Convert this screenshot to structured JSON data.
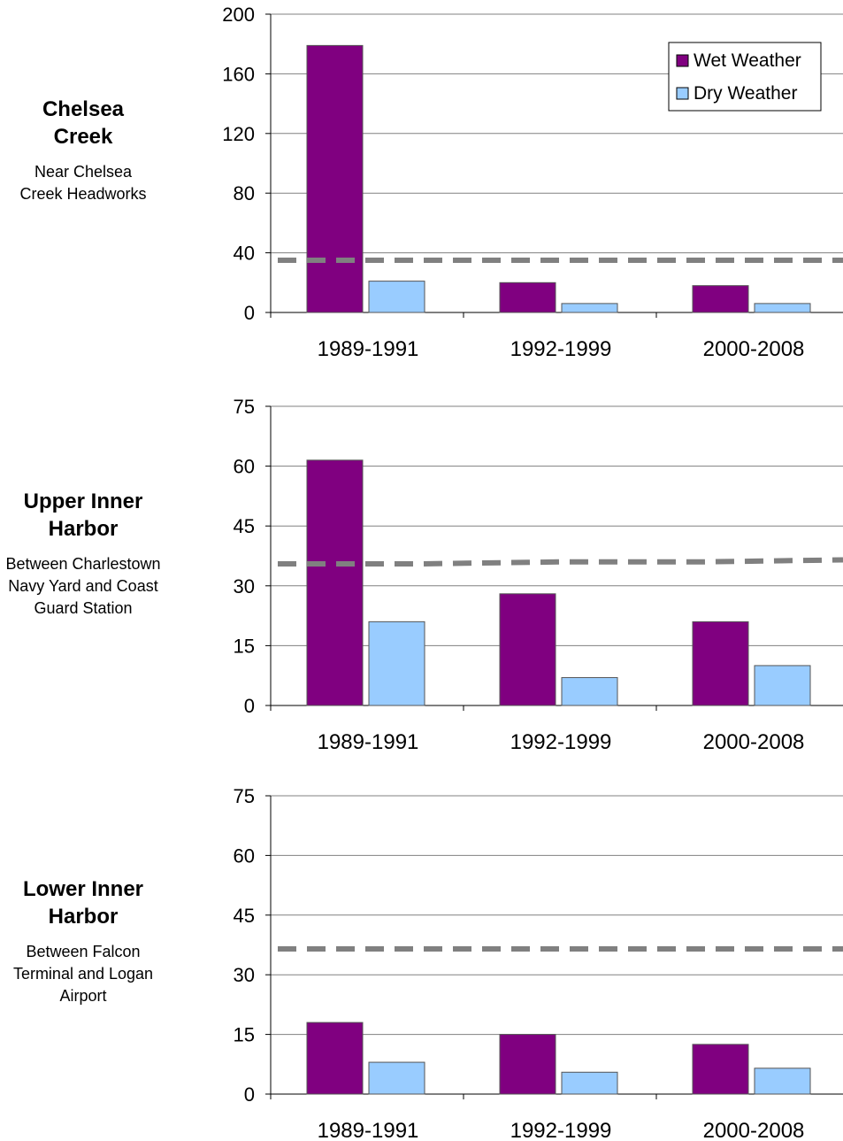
{
  "legend": [
    "Wet Weather",
    "Dry Weather"
  ],
  "colors": {
    "wet": "#800080",
    "dry": "#99ccff",
    "threshold": "#808080",
    "grid": "#808080"
  },
  "chart_data": [
    {
      "type": "bar",
      "site_title": "Chelsea\nCreek",
      "site_subtitle": "Near Chelsea\nCreek Headworks",
      "categories": [
        "1989-1991",
        "1992-1999",
        "2000-2008"
      ],
      "series": [
        {
          "name": "Wet Weather",
          "values": [
            179,
            20,
            18
          ]
        },
        {
          "name": "Dry Weather",
          "values": [
            21,
            6,
            6
          ]
        }
      ],
      "threshold": [
        35,
        35,
        35,
        35
      ],
      "ylim": [
        0,
        200
      ],
      "yticks": [
        0,
        40,
        80,
        120,
        160,
        200
      ],
      "grid": true,
      "legend_position": "top-right"
    },
    {
      "type": "bar",
      "site_title": "Upper Inner\nHarbor",
      "site_subtitle": "Between Charlestown\nNavy Yard and Coast\nGuard Station",
      "categories": [
        "1989-1991",
        "1992-1999",
        "2000-2008"
      ],
      "series": [
        {
          "name": "Wet Weather",
          "values": [
            61.5,
            28,
            21
          ]
        },
        {
          "name": "Dry Weather",
          "values": [
            21,
            7,
            10
          ]
        }
      ],
      "threshold": [
        35.5,
        35.5,
        36,
        36,
        36.5
      ],
      "ylim": [
        0,
        75
      ],
      "yticks": [
        0,
        15,
        30,
        45,
        60,
        75
      ],
      "grid": true
    },
    {
      "type": "bar",
      "site_title": "Lower Inner\nHarbor",
      "site_subtitle": "Between Falcon\nTerminal and Logan\nAirport",
      "categories": [
        "1989-1991",
        "1992-1999",
        "2000-2008"
      ],
      "series": [
        {
          "name": "Wet Weather",
          "values": [
            18,
            15,
            12.5
          ]
        },
        {
          "name": "Dry Weather",
          "values": [
            8,
            5.5,
            6.5
          ]
        }
      ],
      "threshold": [
        36.5,
        36.5,
        36.5,
        36.5
      ],
      "ylim": [
        0,
        75
      ],
      "yticks": [
        0,
        15,
        30,
        45,
        60,
        75
      ],
      "grid": true
    }
  ]
}
